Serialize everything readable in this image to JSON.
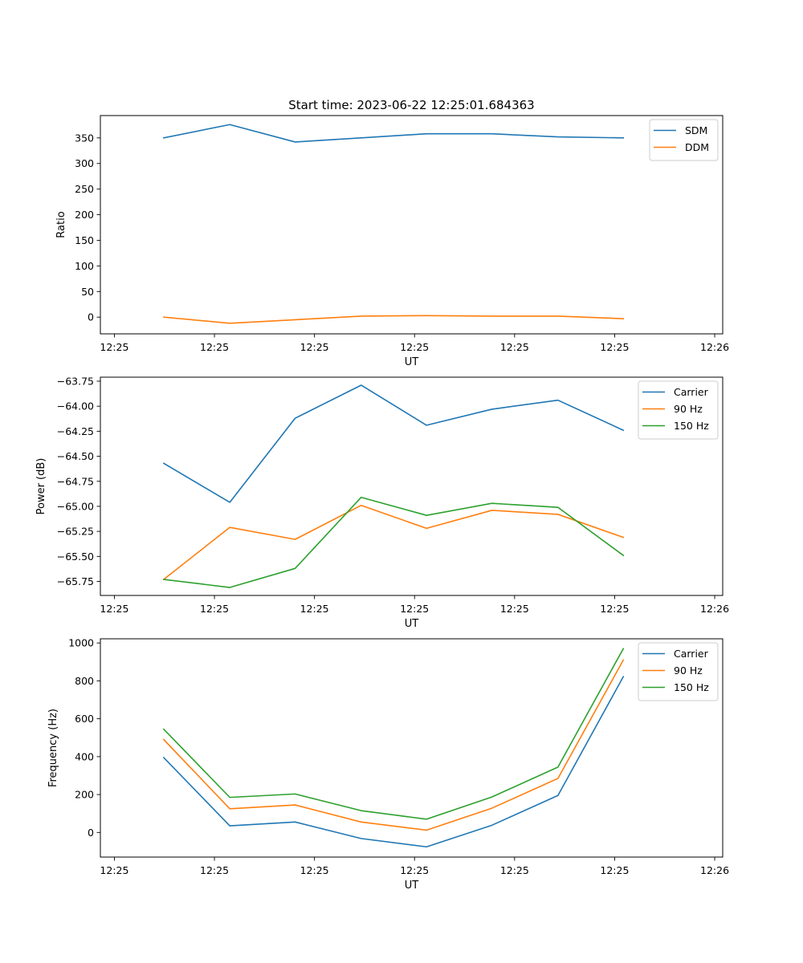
{
  "figure": {
    "title": "Start time: 2023-06-22 12:25:01.684363"
  },
  "chart_data": [
    {
      "type": "line",
      "title": "Start time: 2023-06-22 12:25:01.684363",
      "xlabel": "UT",
      "ylabel": "Ratio",
      "xlim": [
        0,
        9.33
      ],
      "ylim": [
        -32.6,
        393.6
      ],
      "x_ticks": [
        {
          "x": 0.21,
          "label": "12:25"
        },
        {
          "x": 1.71,
          "label": "12:25"
        },
        {
          "x": 3.21,
          "label": "12:25"
        },
        {
          "x": 4.71,
          "label": "12:25"
        },
        {
          "x": 6.21,
          "label": "12:25"
        },
        {
          "x": 7.71,
          "label": "12:25"
        },
        {
          "x": 9.21,
          "label": "12:26"
        }
      ],
      "y_ticks": [
        0,
        50,
        100,
        150,
        200,
        250,
        300,
        350
      ],
      "x": [
        0.95,
        1.94,
        2.92,
        3.91,
        4.89,
        5.87,
        6.86,
        7.84
      ],
      "series": [
        {
          "name": "SDM",
          "color": "#1f77b4",
          "values": [
            350,
            376,
            342,
            350,
            358,
            358,
            352,
            350
          ]
        },
        {
          "name": "DDM",
          "color": "#ff7f0e",
          "values": [
            0,
            -12,
            -5,
            2,
            3,
            2,
            2,
            -3
          ]
        }
      ],
      "legend": "upper right"
    },
    {
      "type": "line",
      "title": "",
      "xlabel": "UT",
      "ylabel": "Power (dB)",
      "xlim": [
        0,
        9.33
      ],
      "ylim": [
        -65.89,
        -63.71
      ],
      "x_ticks": [
        {
          "x": 0.21,
          "label": "12:25"
        },
        {
          "x": 1.71,
          "label": "12:25"
        },
        {
          "x": 3.21,
          "label": "12:25"
        },
        {
          "x": 4.71,
          "label": "12:25"
        },
        {
          "x": 6.21,
          "label": "12:25"
        },
        {
          "x": 7.71,
          "label": "12:25"
        },
        {
          "x": 9.21,
          "label": "12:26"
        }
      ],
      "y_ticks": [
        -65.75,
        -65.5,
        -65.25,
        -65.0,
        -64.75,
        -64.5,
        -64.25,
        -64.0,
        -63.75
      ],
      "y_tick_labels": [
        "−65.75",
        "−65.50",
        "−65.25",
        "−65.00",
        "−64.75",
        "−64.50",
        "−64.25",
        "−64.00",
        "−63.75"
      ],
      "x": [
        0.95,
        1.94,
        2.92,
        3.91,
        4.89,
        5.87,
        6.86,
        7.84
      ],
      "series": [
        {
          "name": "Carrier",
          "color": "#1f77b4",
          "values": [
            -64.57,
            -64.96,
            -64.12,
            -63.79,
            -64.19,
            -64.03,
            -63.94,
            -64.24
          ]
        },
        {
          "name": "90 Hz",
          "color": "#ff7f0e",
          "values": [
            -65.73,
            -65.21,
            -65.33,
            -64.99,
            -65.22,
            -65.04,
            -65.08,
            -65.31
          ]
        },
        {
          "name": "150 Hz",
          "color": "#2ca02c",
          "values": [
            -65.73,
            -65.81,
            -65.62,
            -64.91,
            -65.09,
            -64.97,
            -65.01,
            -65.49
          ]
        }
      ],
      "legend": "upper right"
    },
    {
      "type": "line",
      "title": "",
      "xlabel": "UT",
      "ylabel": "Frequency (Hz)",
      "xlim": [
        0,
        9.33
      ],
      "ylim": [
        -130,
        1022
      ],
      "x_ticks": [
        {
          "x": 0.21,
          "label": "12:25"
        },
        {
          "x": 1.71,
          "label": "12:25"
        },
        {
          "x": 3.21,
          "label": "12:25"
        },
        {
          "x": 4.71,
          "label": "12:25"
        },
        {
          "x": 6.21,
          "label": "12:25"
        },
        {
          "x": 7.71,
          "label": "12:25"
        },
        {
          "x": 9.21,
          "label": "12:26"
        }
      ],
      "y_ticks": [
        0,
        200,
        400,
        600,
        800,
        1000
      ],
      "x": [
        0.95,
        1.94,
        2.92,
        3.91,
        4.89,
        5.87,
        6.86,
        7.84
      ],
      "series": [
        {
          "name": "Carrier",
          "color": "#1f77b4",
          "values": [
            395,
            35,
            55,
            -32,
            -76,
            38,
            195,
            822
          ]
        },
        {
          "name": "90 Hz",
          "color": "#ff7f0e",
          "values": [
            490,
            125,
            145,
            55,
            12,
            128,
            285,
            910
          ]
        },
        {
          "name": "150 Hz",
          "color": "#2ca02c",
          "values": [
            545,
            185,
            203,
            115,
            70,
            187,
            345,
            970
          ]
        }
      ],
      "legend": "upper right"
    }
  ]
}
